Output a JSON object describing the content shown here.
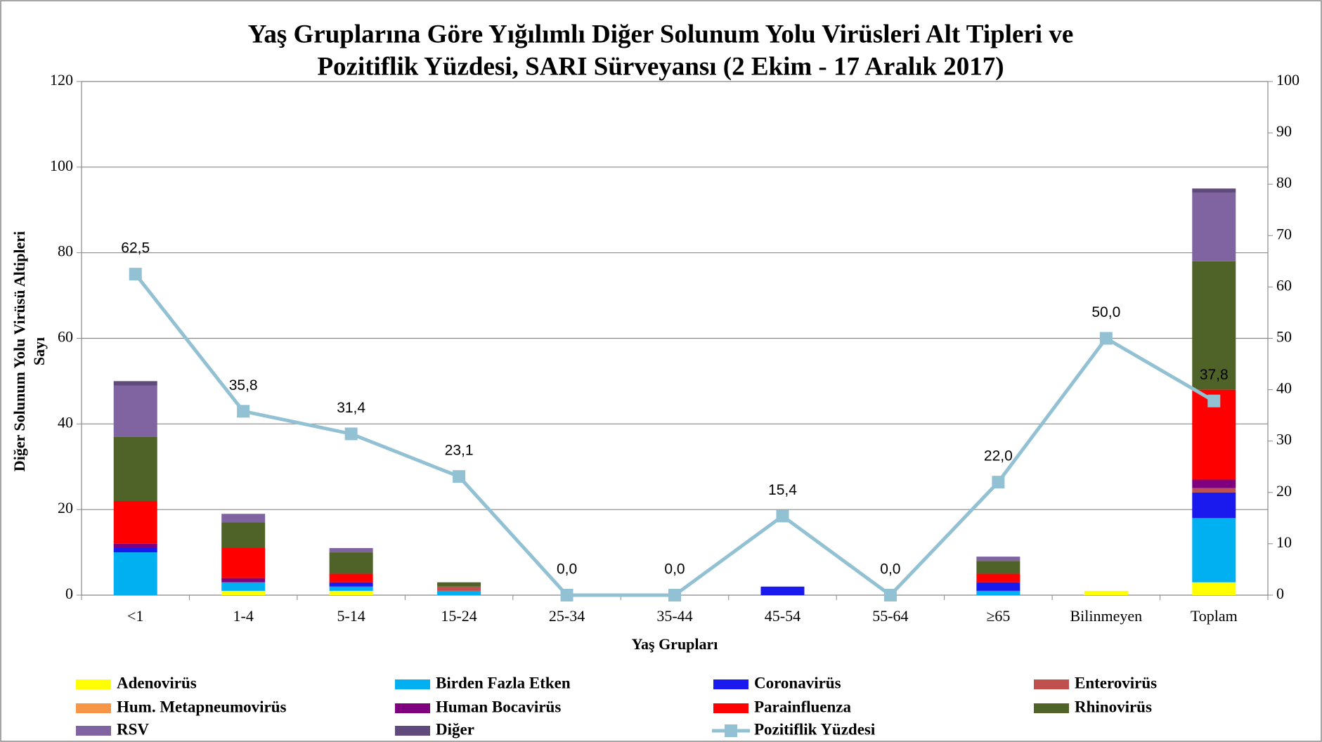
{
  "chart_data": {
    "type": "bar-line",
    "title_lines": [
      "Yaş Gruplarına Göre Yığılımlı Diğer Solunum Yolu Virüsleri Alt Tipleri ve",
      "Pozitiflik Yüzdesi, SARI Sürveyansı (2 Ekim - 17 Aralık 2017)"
    ],
    "x_label": "Yaş Grupları",
    "y_label_lines": [
      "Diğer Solunum Yolu Virüsü Altipleri",
      "Sayı"
    ],
    "categories": [
      "<1",
      "1-4",
      "5-14",
      "15-24",
      "25-34",
      "35-44",
      "45-54",
      "55-64",
      "≥65",
      "Bilinmeyen",
      "Toplam"
    ],
    "ylim": [
      0,
      120
    ],
    "yticks": [
      0,
      20,
      40,
      60,
      80,
      100,
      120
    ],
    "y2lim": [
      0,
      100
    ],
    "y2ticks": [
      0,
      10,
      20,
      30,
      40,
      50,
      60,
      70,
      80,
      90,
      100
    ],
    "grid": true,
    "series": [
      {
        "name": "Adenovirüs",
        "color": "#ffff00",
        "values": [
          0,
          1,
          1,
          0,
          0,
          0,
          0,
          0,
          0,
          1,
          3
        ]
      },
      {
        "name": "Birden Fazla Etken",
        "color": "#00b0f0",
        "values": [
          10,
          2,
          1,
          1,
          0,
          0,
          0,
          0,
          1,
          0,
          15
        ]
      },
      {
        "name": "Coronavirüs",
        "color": "#1a1aee",
        "values": [
          1,
          0,
          1,
          0,
          0,
          0,
          2,
          0,
          2,
          0,
          6
        ]
      },
      {
        "name": "Enterovirüs",
        "color": "#c0504d",
        "values": [
          0,
          0,
          0,
          1,
          0,
          0,
          0,
          0,
          0,
          0,
          1
        ]
      },
      {
        "name": "Hum. Metapneumovirüs",
        "color": "#f79646",
        "values": [
          0,
          0,
          0,
          0,
          0,
          0,
          0,
          0,
          0,
          0,
          0
        ]
      },
      {
        "name": "Human Bocavirüs",
        "color": "#7f007f",
        "values": [
          1,
          1,
          0,
          0,
          0,
          0,
          0,
          0,
          0,
          0,
          2
        ]
      },
      {
        "name": "Parainfluenza",
        "color": "#ff0000",
        "values": [
          10,
          7,
          2,
          0,
          0,
          0,
          0,
          0,
          2,
          0,
          21
        ]
      },
      {
        "name": "Rhinovirüs",
        "color": "#4f6228",
        "values": [
          15,
          6,
          5,
          1,
          0,
          0,
          0,
          0,
          3,
          0,
          30
        ]
      },
      {
        "name": "RSV",
        "color": "#8064a2",
        "values": [
          12,
          2,
          1,
          0,
          0,
          0,
          0,
          0,
          1,
          0,
          16
        ]
      },
      {
        "name": "Diğer",
        "color": "#604a7b",
        "values": [
          1,
          0,
          0,
          0,
          0,
          0,
          0,
          0,
          0,
          0,
          1
        ]
      },
      {
        "name": "Pozitiflik Yüzdesi",
        "color": "#93c1d4",
        "type": "line",
        "axis": "y2",
        "values": [
          62.5,
          35.8,
          31.4,
          23.1,
          0,
          0,
          15.4,
          0,
          22.0,
          50.0,
          37.8
        ],
        "value_labels": [
          "62,5",
          "35,8",
          "31,4",
          "23,1",
          "0,0",
          "0,0",
          "15,4",
          "0,0",
          "22,0",
          "50,0",
          "37,8"
        ]
      }
    ]
  }
}
